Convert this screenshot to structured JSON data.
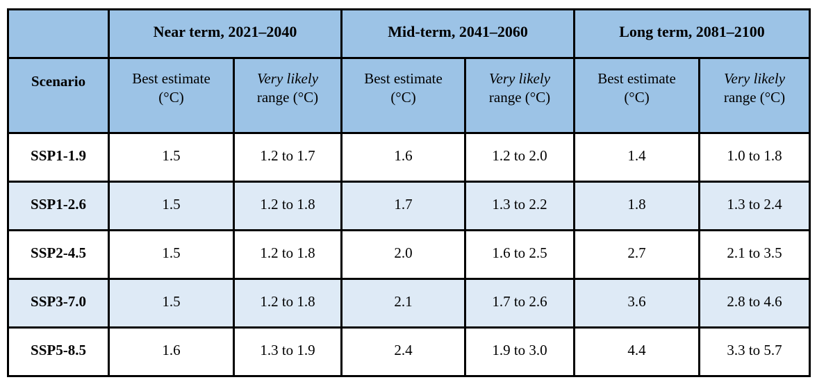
{
  "table": {
    "groups": [
      {
        "label": "Near term, 2021–2040"
      },
      {
        "label": "Mid-term, 2041–2060"
      },
      {
        "label": "Long term, 2081–2100"
      }
    ],
    "scenario_header": "Scenario",
    "best_estimate": {
      "line1": "Best estimate",
      "line2": "(°C)"
    },
    "very_likely": {
      "italic": "Very likely",
      "rest": "range (°C)"
    },
    "rows": [
      {
        "scenario": "SSP1-1.9",
        "values": [
          "1.5",
          "1.2 to 1.7",
          "1.6",
          "1.2 to 2.0",
          "1.4",
          "1.0 to 1.8"
        ]
      },
      {
        "scenario": "SSP1-2.6",
        "values": [
          "1.5",
          "1.2 to 1.8",
          "1.7",
          "1.3 to 2.2",
          "1.8",
          "1.3 to 2.4"
        ]
      },
      {
        "scenario": "SSP2-4.5",
        "values": [
          "1.5",
          "1.2 to 1.8",
          "2.0",
          "1.6 to 2.5",
          "2.7",
          "2.1 to 3.5"
        ]
      },
      {
        "scenario": "SSP3-7.0",
        "values": [
          "1.5",
          "1.2 to 1.8",
          "2.1",
          "1.7 to 2.6",
          "3.6",
          "2.8 to 4.6"
        ]
      },
      {
        "scenario": "SSP5-8.5",
        "values": [
          "1.6",
          "1.3 to 1.9",
          "2.4",
          "1.9 to 3.0",
          "4.4",
          "3.3 to 5.7"
        ]
      }
    ]
  },
  "colors": {
    "header_bg": "#9CC3E6",
    "row_alt_bg": "#DEEAF6",
    "row_bg": "#FFFFFF",
    "border": "#000000",
    "text": "#000000"
  },
  "chart_data": {
    "type": "table",
    "columns": [
      "Scenario",
      "Near term, 2021–2040 Best estimate (°C)",
      "Near term, 2021–2040 Very likely range (°C)",
      "Mid-term, 2041–2060 Best estimate (°C)",
      "Mid-term, 2041–2060 Very likely range (°C)",
      "Long term, 2081–2100 Best estimate (°C)",
      "Long term, 2081–2100 Very likely range (°C)"
    ],
    "rows": [
      [
        "SSP1-1.9",
        1.5,
        "1.2 to 1.7",
        1.6,
        "1.2 to 2.0",
        1.4,
        "1.0 to 1.8"
      ],
      [
        "SSP1-2.6",
        1.5,
        "1.2 to 1.8",
        1.7,
        "1.3 to 2.2",
        1.8,
        "1.3 to 2.4"
      ],
      [
        "SSP2-4.5",
        1.5,
        "1.2 to 1.8",
        2.0,
        "1.6 to 2.5",
        2.7,
        "2.1 to 3.5"
      ],
      [
        "SSP3-7.0",
        1.5,
        "1.2 to 1.8",
        2.1,
        "1.7 to 2.6",
        3.6,
        "2.8 to 4.6"
      ],
      [
        "SSP5-8.5",
        1.6,
        "1.3 to 1.9",
        2.4,
        "1.9 to 3.0",
        4.4,
        "3.3 to 5.7"
      ]
    ]
  }
}
